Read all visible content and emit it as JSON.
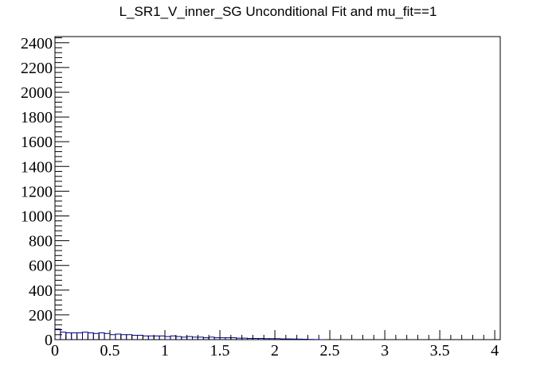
{
  "chart_data": {
    "type": "histogram",
    "title": "L_SR1_V_inner_SG Unconditional Fit and mu_fit==1",
    "xlabel": "",
    "ylabel": "",
    "xlim": [
      0,
      4.05
    ],
    "ylim": [
      0,
      2450
    ],
    "x_ticks": [
      "0",
      "0.5",
      "1",
      "1.5",
      "2",
      "2.5",
      "3",
      "3.5",
      "4"
    ],
    "y_ticks": [
      "0",
      "200",
      "400",
      "600",
      "800",
      "1000",
      "1200",
      "1400",
      "1600",
      "1800",
      "2000",
      "2200",
      "2400"
    ],
    "bin_width": 0.05,
    "series": [
      {
        "color": "#00007f",
        "bin_starts": [
          0.0,
          0.05,
          0.1,
          0.15,
          0.2,
          0.25,
          0.3,
          0.35,
          0.4,
          0.45,
          0.5,
          0.55,
          0.6,
          0.65,
          0.7,
          0.75,
          0.8,
          0.85,
          0.9,
          0.95,
          1.0,
          1.05,
          1.1,
          1.15,
          1.2,
          1.25,
          1.3,
          1.35,
          1.4,
          1.45,
          1.5,
          1.55,
          1.6,
          1.65,
          1.7,
          1.75,
          1.8,
          1.85,
          1.9,
          1.95,
          2.0,
          2.05,
          2.1,
          2.15,
          2.2,
          2.25,
          2.3,
          2.35,
          2.4
        ],
        "values": [
          85,
          60,
          55,
          55,
          55,
          60,
          55,
          50,
          55,
          50,
          40,
          45,
          40,
          40,
          35,
          35,
          30,
          30,
          30,
          30,
          25,
          30,
          25,
          20,
          25,
          20,
          20,
          15,
          20,
          15,
          15,
          15,
          15,
          12,
          12,
          10,
          10,
          10,
          8,
          8,
          8,
          6,
          6,
          5,
          4,
          3,
          2,
          1,
          0
        ]
      }
    ],
    "grid": false,
    "legend": "none"
  }
}
